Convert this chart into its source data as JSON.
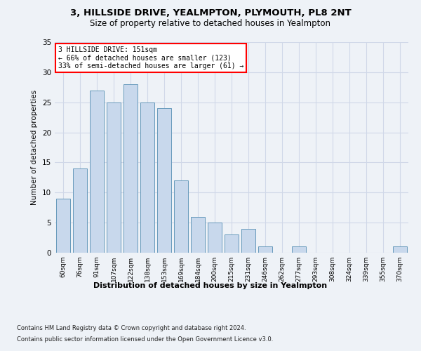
{
  "title1": "3, HILLSIDE DRIVE, YEALMPTON, PLYMOUTH, PL8 2NT",
  "title2": "Size of property relative to detached houses in Yealmpton",
  "xlabel": "Distribution of detached houses by size in Yealmpton",
  "ylabel": "Number of detached properties",
  "categories": [
    "60sqm",
    "76sqm",
    "91sqm",
    "107sqm",
    "122sqm",
    "138sqm",
    "153sqm",
    "169sqm",
    "184sqm",
    "200sqm",
    "215sqm",
    "231sqm",
    "246sqm",
    "262sqm",
    "277sqm",
    "293sqm",
    "308sqm",
    "324sqm",
    "339sqm",
    "355sqm",
    "370sqm"
  ],
  "values": [
    9,
    14,
    27,
    25,
    28,
    25,
    24,
    12,
    6,
    5,
    3,
    4,
    1,
    0,
    1,
    0,
    0,
    0,
    0,
    0,
    1
  ],
  "bar_color": "#c8d8ec",
  "bar_edge_color": "#6699bb",
  "highlight_index": 5,
  "annotation_title": "3 HILLSIDE DRIVE: 151sqm",
  "annotation_line1": "← 66% of detached houses are smaller (123)",
  "annotation_line2": "33% of semi-detached houses are larger (61) →",
  "ylim": [
    0,
    35
  ],
  "yticks": [
    0,
    5,
    10,
    15,
    20,
    25,
    30,
    35
  ],
  "footer1": "Contains HM Land Registry data © Crown copyright and database right 2024.",
  "footer2": "Contains public sector information licensed under the Open Government Licence v3.0.",
  "bg_color": "#eef2f7",
  "plot_bg_color": "#eef2f7",
  "grid_color": "#d0d8e8"
}
